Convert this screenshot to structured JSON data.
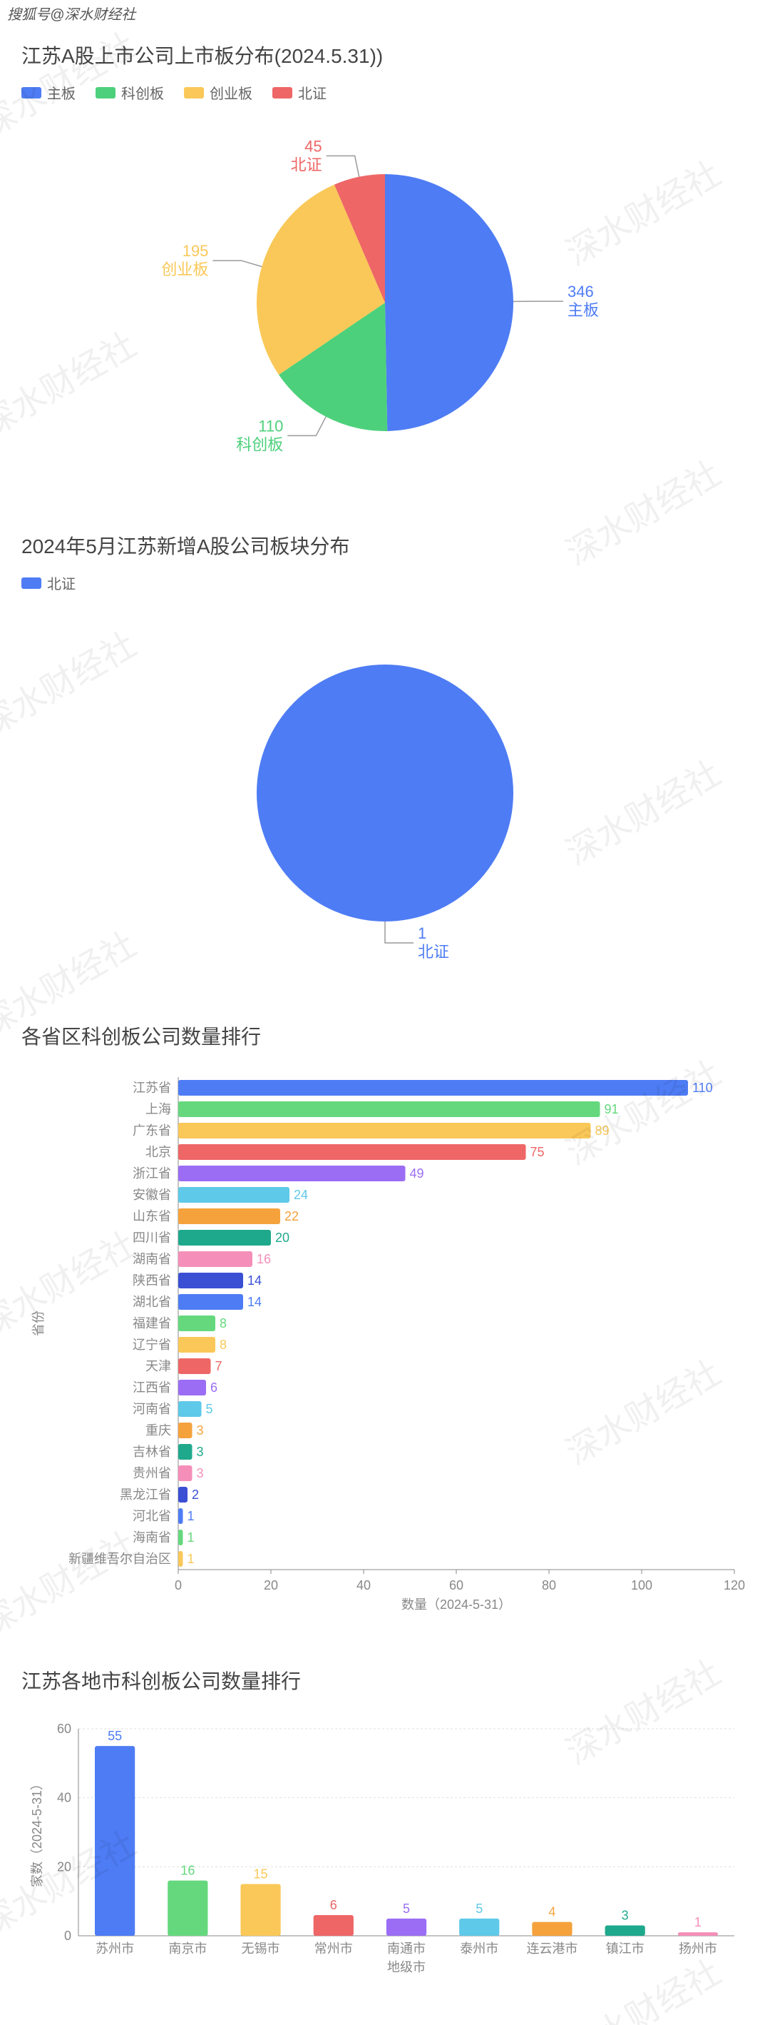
{
  "header": {
    "text": "搜狐号@深水财经社"
  },
  "watermark_text": "深水财经社",
  "chart1": {
    "title": "江苏A股上市公司上市板分布(2024.5.31))",
    "type": "pie",
    "slices": [
      {
        "label": "主板",
        "value": 346,
        "color": "#4e7cf4"
      },
      {
        "label": "科创板",
        "value": 110,
        "color": "#4dd07b"
      },
      {
        "label": "创业板",
        "value": 195,
        "color": "#fac858"
      },
      {
        "label": "北证",
        "value": 45,
        "color": "#ee6666"
      }
    ],
    "legend_fontsize": 20,
    "label_fontsize": 22,
    "background_color": "#ffffff"
  },
  "chart2": {
    "title": "2024年5月江苏新增A股公司板块分布",
    "type": "pie",
    "slices": [
      {
        "label": "北证",
        "value": 1,
        "color": "#4e7cf4"
      }
    ],
    "legend_fontsize": 20,
    "label_fontsize": 22,
    "background_color": "#ffffff"
  },
  "chart3": {
    "title": "各省区科创板公司数量排行",
    "type": "horizontal-bar",
    "ylabel": "省份",
    "xlabel": "数量（2024-5-31）",
    "xlim": [
      0,
      120
    ],
    "xtick_step": 20,
    "label_fontsize": 18,
    "value_fontsize": 18,
    "axis_color": "#888888",
    "grid_color": "#e0e0e0",
    "background_color": "#ffffff",
    "bars": [
      {
        "label": "江苏省",
        "value": 110,
        "color": "#4e7cf4"
      },
      {
        "label": "上海",
        "value": 91,
        "color": "#65d87d"
      },
      {
        "label": "广东省",
        "value": 89,
        "color": "#fac858"
      },
      {
        "label": "北京",
        "value": 75,
        "color": "#ee6666"
      },
      {
        "label": "浙江省",
        "value": 49,
        "color": "#9b6df5"
      },
      {
        "label": "安徽省",
        "value": 24,
        "color": "#5ec9e8"
      },
      {
        "label": "山东省",
        "value": 22,
        "color": "#f5a23c"
      },
      {
        "label": "四川省",
        "value": 20,
        "color": "#1fa98c"
      },
      {
        "label": "湖南省",
        "value": 16,
        "color": "#f58fb9"
      },
      {
        "label": "陕西省",
        "value": 14,
        "color": "#3a4fd4"
      },
      {
        "label": "湖北省",
        "value": 14,
        "color": "#4e7cf4"
      },
      {
        "label": "福建省",
        "value": 8,
        "color": "#65d87d"
      },
      {
        "label": "辽宁省",
        "value": 8,
        "color": "#fac858"
      },
      {
        "label": "天津",
        "value": 7,
        "color": "#ee6666"
      },
      {
        "label": "江西省",
        "value": 6,
        "color": "#9b6df5"
      },
      {
        "label": "河南省",
        "value": 5,
        "color": "#5ec9e8"
      },
      {
        "label": "重庆",
        "value": 3,
        "color": "#f5a23c"
      },
      {
        "label": "吉林省",
        "value": 3,
        "color": "#1fa98c"
      },
      {
        "label": "贵州省",
        "value": 3,
        "color": "#f58fb9"
      },
      {
        "label": "黑龙江省",
        "value": 2,
        "color": "#3a4fd4"
      },
      {
        "label": "河北省",
        "value": 1,
        "color": "#4e7cf4"
      },
      {
        "label": "海南省",
        "value": 1,
        "color": "#65d87d"
      },
      {
        "label": "新疆维吾尔自治区",
        "value": 1,
        "color": "#fac858"
      }
    ]
  },
  "chart4": {
    "title": "江苏各地市科创板公司数量排行",
    "type": "vertical-bar",
    "ylabel": "家数（2024-5-31）",
    "xlabel": "地级市",
    "ylim": [
      0,
      60
    ],
    "ytick_step": 20,
    "label_fontsize": 18,
    "value_fontsize": 18,
    "axis_color": "#888888",
    "grid_color": "#e0e0e0",
    "background_color": "#ffffff",
    "bar_width": 0.55,
    "bars": [
      {
        "label": "苏州市",
        "value": 55,
        "color": "#4e7cf4"
      },
      {
        "label": "南京市",
        "value": 16,
        "color": "#65d87d"
      },
      {
        "label": "无锡市",
        "value": 15,
        "color": "#fac858"
      },
      {
        "label": "常州市",
        "value": 6,
        "color": "#ee6666"
      },
      {
        "label": "南通市",
        "value": 5,
        "color": "#9b6df5"
      },
      {
        "label": "泰州市",
        "value": 5,
        "color": "#5ec9e8"
      },
      {
        "label": "连云港市",
        "value": 4,
        "color": "#f5a23c"
      },
      {
        "label": "镇江市",
        "value": 3,
        "color": "#1fa98c"
      },
      {
        "label": "扬州市",
        "value": 1,
        "color": "#f58fb9"
      }
    ]
  }
}
